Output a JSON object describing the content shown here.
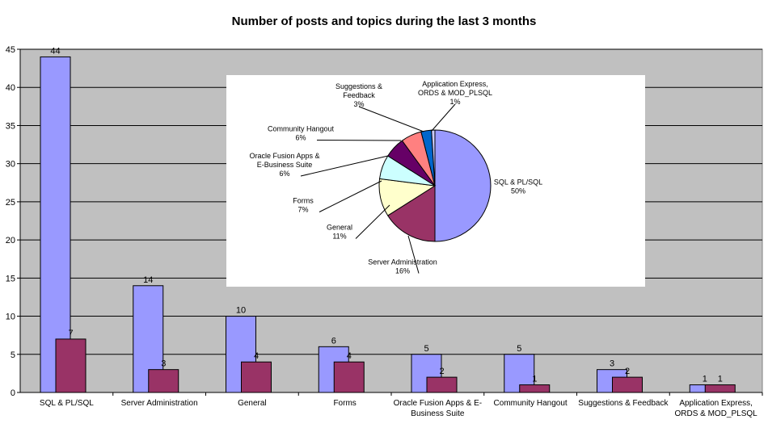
{
  "chart_data": [
    {
      "type": "bar",
      "title": "Number of posts and topics during the last 3 months",
      "categories": [
        "SQL & PL/SQL",
        "Server Administration",
        "General",
        "Forms",
        "Oracle Fusion Apps & E-Business Suite",
        "Community Hangout",
        "Suggestions & Feedback",
        "Application Express, ORDS & MOD_PLSQL"
      ],
      "category_lines": [
        [
          "SQL & PL/SQL"
        ],
        [
          "Server Administration"
        ],
        [
          "General"
        ],
        [
          "Forms"
        ],
        [
          "Oracle Fusion Apps & E-",
          "Business Suite"
        ],
        [
          "Community Hangout"
        ],
        [
          "Suggestions & Feedback"
        ],
        [
          "Application Express,",
          "ORDS & MOD_PLSQL"
        ]
      ],
      "series": [
        {
          "values": [
            44,
            14,
            10,
            6,
            5,
            5,
            3,
            1
          ],
          "color": "#9999ff"
        },
        {
          "values": [
            7,
            3,
            4,
            4,
            2,
            1,
            2,
            1
          ],
          "color": "#993366"
        }
      ],
      "ylim": [
        0,
        45
      ],
      "yticks": [
        0,
        5,
        10,
        15,
        20,
        25,
        30,
        35,
        40,
        45
      ],
      "plot_background": "#c0c0c0",
      "grid": true
    },
    {
      "type": "pie",
      "slices": [
        {
          "name": "SQL & PL/SQL",
          "label_lines": [
            "SQL & PL/SQL"
          ],
          "percent_label": "50%",
          "value": 50,
          "color": "#9999ff"
        },
        {
          "name": "Server Administration",
          "label_lines": [
            "Server Administration"
          ],
          "percent_label": "16%",
          "value": 16,
          "color": "#993366"
        },
        {
          "name": "General",
          "label_lines": [
            "General"
          ],
          "percent_label": "11%",
          "value": 11,
          "color": "#ffffcc"
        },
        {
          "name": "Forms",
          "label_lines": [
            "Forms"
          ],
          "percent_label": "7%",
          "value": 7,
          "color": "#ccffff"
        },
        {
          "name": "Oracle Fusion Apps & E-Business Suite",
          "label_lines": [
            "Oracle Fusion Apps &",
            "E-Business Suite"
          ],
          "percent_label": "6%",
          "value": 6,
          "color": "#660066"
        },
        {
          "name": "Community Hangout",
          "label_lines": [
            "Community Hangout"
          ],
          "percent_label": "6%",
          "value": 6,
          "color": "#ff8080"
        },
        {
          "name": "Suggestions & Feedback",
          "label_lines": [
            "Suggestions &",
            "Feedback"
          ],
          "percent_label": "3%",
          "value": 3,
          "color": "#0066cc"
        },
        {
          "name": "Application Express, ORDS & MOD_PLSQL",
          "label_lines": [
            "Application Express,",
            "ORDS & MOD_PLSQL"
          ],
          "percent_label": "1%",
          "value": 1,
          "color": "#ccccff"
        }
      ]
    }
  ]
}
